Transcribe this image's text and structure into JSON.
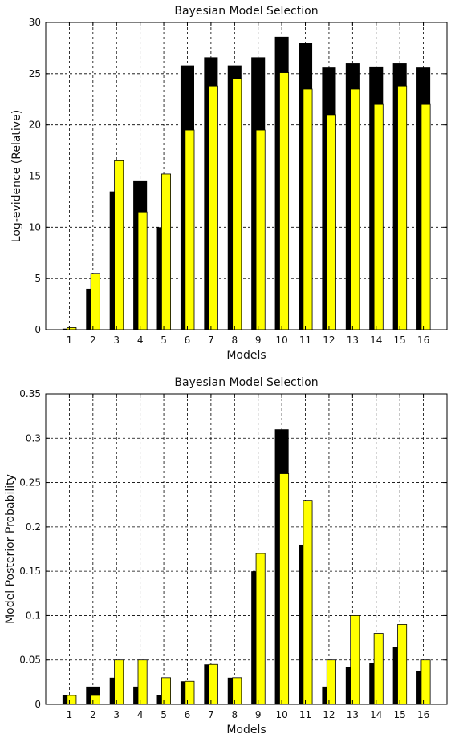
{
  "chart_data": [
    {
      "type": "bar",
      "title": "Bayesian Model Selection",
      "xlabel": "Models",
      "ylabel": "Log-evidence (Relative)",
      "categories": [
        "1",
        "2",
        "3",
        "4",
        "5",
        "6",
        "7",
        "8",
        "9",
        "10",
        "11",
        "12",
        "13",
        "14",
        "15",
        "16"
      ],
      "ylim": [
        0,
        30
      ],
      "yticks": [
        "0",
        "5",
        "10",
        "15",
        "20",
        "25",
        "30"
      ],
      "grid": true,
      "series": [
        {
          "color": "#000000",
          "values": [
            0.1,
            4.0,
            13.5,
            14.5,
            10.0,
            25.8,
            26.6,
            25.8,
            26.6,
            28.6,
            28.0,
            25.6,
            26.0,
            25.7,
            26.0,
            25.6
          ]
        },
        {
          "color": "#ffff00",
          "values": [
            0.2,
            5.5,
            16.5,
            11.5,
            15.2,
            19.5,
            23.8,
            24.5,
            19.5,
            25.1,
            23.5,
            21.0,
            23.5,
            22.0,
            23.8,
            22.0
          ]
        }
      ]
    },
    {
      "type": "bar",
      "title": "Bayesian Model Selection",
      "xlabel": "Models",
      "ylabel": "Model Posterior Probability",
      "categories": [
        "1",
        "2",
        "3",
        "4",
        "5",
        "6",
        "7",
        "8",
        "9",
        "10",
        "11",
        "12",
        "13",
        "14",
        "15",
        "16"
      ],
      "ylim": [
        0,
        0.35
      ],
      "yticks": [
        "0",
        "0.05",
        "0.1",
        "0.15",
        "0.2",
        "0.25",
        "0.3",
        "0.35"
      ],
      "grid": true,
      "series": [
        {
          "color": "#000000",
          "values": [
            0.01,
            0.02,
            0.03,
            0.02,
            0.01,
            0.026,
            0.045,
            0.03,
            0.15,
            0.31,
            0.18,
            0.02,
            0.042,
            0.047,
            0.065,
            0.038
          ]
        },
        {
          "color": "#ffff00",
          "values": [
            0.01,
            0.01,
            0.05,
            0.05,
            0.03,
            0.026,
            0.045,
            0.03,
            0.17,
            0.26,
            0.23,
            0.05,
            0.1,
            0.08,
            0.09,
            0.05
          ]
        }
      ]
    }
  ]
}
